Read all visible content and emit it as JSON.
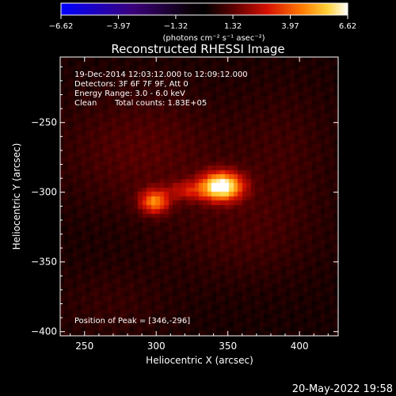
{
  "chart_data": {
    "type": "heatmap",
    "title": "Reconstructed RHESSI Image",
    "xlabel": "Heliocentric X (arcsec)",
    "ylabel": "Heliocentric Y (arcsec)",
    "xlim": [
      233,
      427
    ],
    "ylim": [
      -403,
      -203
    ],
    "x_ticks": [
      250,
      300,
      350,
      400
    ],
    "y_ticks": [
      -250,
      -300,
      -350,
      -400
    ],
    "x_tick_labels": [
      "250",
      "300",
      "350",
      "400"
    ],
    "y_tick_labels": [
      "−250",
      "−300",
      "−350",
      "−400"
    ],
    "colorbar": {
      "range": [
        -6.62,
        6.62
      ],
      "ticks": [
        -6.62,
        -3.97,
        -1.32,
        1.32,
        3.97,
        6.62
      ],
      "tick_labels": [
        "−6.62",
        "−3.97",
        "−1.32",
        "1.32",
        "3.97",
        "6.62"
      ],
      "units": "(photons cm⁻² s⁻¹ asec⁻²)",
      "colormap": "blue-black-red-yellow-white"
    },
    "sources": [
      {
        "x": 346,
        "y": -296,
        "peak": 6.62,
        "sigma_x": 10,
        "sigma_y": 7
      },
      {
        "x": 299,
        "y": -307,
        "peak": 3.9,
        "sigma_x": 7,
        "sigma_y": 6
      },
      {
        "x": 322,
        "y": -299,
        "peak": 1.8,
        "sigma_x": 10,
        "sigma_y": 5
      },
      {
        "x": 290,
        "y": -270,
        "peak": 0.9,
        "sigma_x": 40,
        "sigma_y": 30
      },
      {
        "x": 360,
        "y": -330,
        "peak": 0.6,
        "sigma_x": 35,
        "sigma_y": 25
      },
      {
        "x": 270,
        "y": -380,
        "peak": 0.4,
        "sigma_x": 30,
        "sigma_y": 20
      },
      {
        "x": 390,
        "y": -270,
        "peak": 0.5,
        "sigma_x": 25,
        "sigma_y": 35
      }
    ],
    "background": 0.35,
    "annotations": {
      "time_range": "19-Dec-2014 12:03:12.000 to 12:09:12.000",
      "detectors": "Detectors: 3F 6F 7F 9F, Att 0",
      "energy": "Energy Range: 3.0 - 6.0 keV",
      "algorithm": "Clean",
      "counts": "Total counts: 1.83E+05",
      "peak_position": "Position of Peak = [346,-296]"
    },
    "timestamp": "20-May-2022 19:58"
  }
}
